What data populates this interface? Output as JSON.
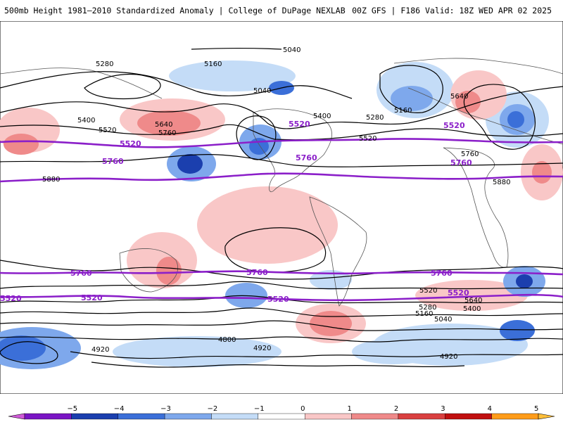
{
  "header": {
    "title": "500mb Height 1981–2010 Standardized Anomaly | College of DuPage NEXLAB",
    "run_info": "00Z GFS | F186 Valid: 18Z WED APR 02 2025"
  },
  "contour_labels": [
    "5040",
    "5160",
    "5280",
    "5400",
    "5520",
    "5640",
    "5760",
    "5880",
    "5040",
    "5160",
    "5280",
    "5400",
    "5520",
    "5640",
    "5760",
    "5880",
    "4920",
    "4800",
    "4920",
    "4920",
    "5040",
    "5160",
    "5280",
    "5400",
    "5520",
    "5640"
  ],
  "highlight_labels": [
    "5520",
    "5520",
    "5520",
    "5760",
    "5760",
    "5760",
    "5760",
    "5760",
    "5520",
    "5520",
    "5520",
    "5520",
    "5760"
  ],
  "colorbar": {
    "ticks": [
      "−5",
      "−4",
      "−3",
      "−2",
      "−1",
      "0",
      "1",
      "2",
      "3",
      "4",
      "5"
    ],
    "colors": [
      "#d05ad8",
      "#7a15c4",
      "#1b3fae",
      "#3b6fd8",
      "#7ea8ec",
      "#c4dcf7",
      "#ffffff",
      "#f9c7c7",
      "#ef8a8a",
      "#d94040",
      "#c01010",
      "#ff9c1a",
      "#ffbf3a"
    ]
  }
}
